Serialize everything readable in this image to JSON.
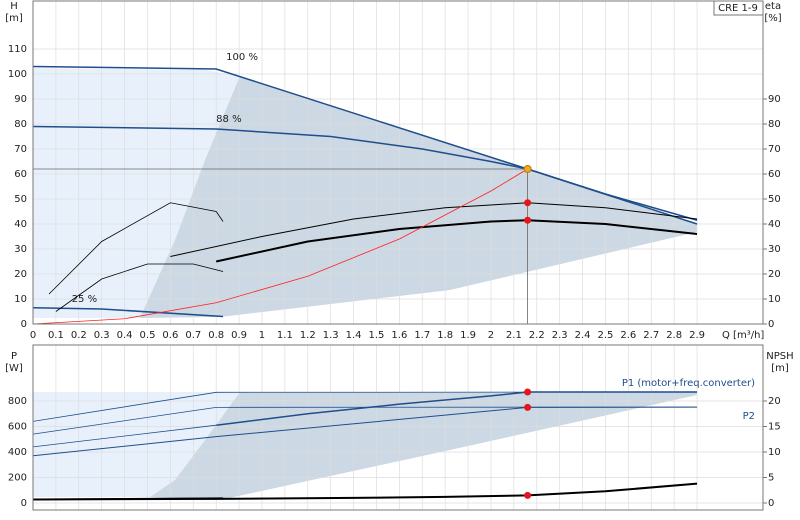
{
  "chart_data": [
    {
      "type": "line",
      "y_label": "H",
      "y_unit": "[m]",
      "y2_label": "eta",
      "y2_unit": "[%]",
      "x_label": "Q [m³/h]",
      "badge": "CRE 1-9",
      "xlim": [
        0,
        3.188
      ],
      "ylim": [
        0,
        129.2
      ],
      "y2lim": [
        0,
        129.2
      ],
      "xticks": [
        0,
        0.1,
        0.2,
        0.3,
        0.4,
        0.5,
        0.6,
        0.7,
        0.8,
        0.9,
        1,
        1.1,
        1.2,
        1.3,
        1.4,
        1.5,
        1.6,
        1.7,
        1.8,
        1.9,
        2,
        2.1,
        2.2,
        2.3,
        2.4,
        2.5,
        2.6,
        2.7,
        2.8,
        2.9
      ],
      "yticks": [
        0,
        10,
        20,
        30,
        40,
        50,
        60,
        70,
        80,
        90,
        100,
        110
      ],
      "y2ticks": [
        0,
        10,
        20,
        30,
        40,
        50,
        60,
        70,
        80,
        90
      ],
      "grid": true,
      "series": [
        {
          "name": "100 %",
          "color": "#1f4e8c",
          "line_width": 1.5,
          "x": [
            0,
            0.8,
            2.16,
            2.9
          ],
          "values": [
            103,
            102,
            62,
            40
          ]
        },
        {
          "name": "88 %",
          "color": "#1f4e8c",
          "line_width": 1.5,
          "x": [
            0,
            0.8,
            1.3,
            1.7,
            2.0,
            2.16,
            2.5,
            2.9
          ],
          "values": [
            79,
            78,
            75,
            70,
            65,
            62,
            52,
            41.5
          ]
        },
        {
          "name": "25 %",
          "color": "#1f4e8c",
          "line_width": 1.5,
          "x": [
            0,
            0.3,
            0.83
          ],
          "values": [
            6.5,
            6,
            3
          ]
        },
        {
          "color": "#000000",
          "line_width": 2,
          "axis": "y2",
          "x": [
            0.8,
            1.2,
            1.6,
            2.0,
            2.16,
            2.5,
            2.9
          ],
          "values": [
            25,
            33,
            38,
            41,
            41.5,
            40,
            36
          ]
        },
        {
          "color": "#000000",
          "line_width": 1,
          "axis": "y2",
          "x": [
            0.6,
            1.0,
            1.4,
            1.8,
            2.16,
            2.5,
            2.9
          ],
          "values": [
            27,
            35,
            42,
            46.5,
            48.5,
            46.5,
            42
          ]
        },
        {
          "color": "#000000",
          "line_width": 0.8,
          "axis": "y2",
          "x": [
            0.07,
            0.3,
            0.6,
            0.8,
            0.83
          ],
          "values": [
            12,
            33,
            48.5,
            45,
            41
          ]
        },
        {
          "color": "#000000",
          "line_width": 0.8,
          "axis": "y2",
          "x": [
            0.1,
            0.3,
            0.5,
            0.7,
            0.83
          ],
          "values": [
            5,
            18,
            24,
            24,
            21
          ]
        },
        {
          "color": "#ff2020",
          "line_width": 0.8,
          "x": [
            0,
            0.4,
            0.8,
            1.2,
            1.6,
            2.0,
            2.16
          ],
          "values": [
            0,
            2.1,
            8.5,
            19.1,
            34,
            53.2,
            62
          ]
        }
      ],
      "points": [
        {
          "x": 2.16,
          "value": 62,
          "color": "#f5a623",
          "guides": true
        },
        {
          "x": 2.16,
          "value": 48.5,
          "color": "#e8141c",
          "axis": "y2"
        },
        {
          "x": 2.16,
          "value": 41.5,
          "color": "#e8141c",
          "axis": "y2"
        }
      ]
    },
    {
      "type": "line",
      "y_label": "P",
      "y_unit": "[W]",
      "y2_label": "NPSH",
      "y2_unit": "[m]",
      "xlim": [
        0,
        3.188
      ],
      "ylim": [
        -55,
        1239
      ],
      "y2lim": [
        -1.37,
        30.98
      ],
      "xticks": [
        0,
        0.1,
        0.2,
        0.3,
        0.4,
        0.5,
        0.6,
        0.7,
        0.8,
        0.9,
        1,
        1.1,
        1.2,
        1.3,
        1.4,
        1.5,
        1.6,
        1.7,
        1.8,
        1.9,
        2,
        2.1,
        2.2,
        2.3,
        2.4,
        2.5,
        2.6,
        2.7,
        2.8,
        2.9
      ],
      "yticks": [
        0,
        200,
        400,
        600,
        800
      ],
      "y2ticks": [
        0,
        5,
        10,
        15,
        20
      ],
      "grid": true,
      "series": [
        {
          "name": "P1 (motor+freq.converter)",
          "color": "#1f4e8c",
          "line_width": 1.5,
          "x": [
            0.8,
            1.2,
            1.6,
            2.0,
            2.16,
            2.5,
            2.9
          ],
          "values": [
            610,
            700,
            775,
            840,
            870,
            870,
            870
          ]
        },
        {
          "name": "P2",
          "color": "#1f4e8c",
          "line_width": 1,
          "x": [
            0,
            0.8,
            2.16,
            2.9
          ],
          "values": [
            370,
            520,
            750,
            752
          ]
        },
        {
          "color": "#1f4e8c",
          "line_width": 0.8,
          "x": [
            0,
            0.8,
            2.9
          ],
          "values": [
            640,
            868,
            870
          ]
        },
        {
          "color": "#1f4e8c",
          "line_width": 0.8,
          "x": [
            0,
            0.8,
            2.9
          ],
          "values": [
            540,
            750,
            752
          ]
        },
        {
          "color": "#1f4e8c",
          "line_width": 0.8,
          "x": [
            0,
            0.8
          ],
          "values": [
            440,
            610
          ]
        },
        {
          "color": "#000000",
          "line_width": 1,
          "x": [
            0,
            0.83
          ],
          "values": [
            30,
            40
          ]
        },
        {
          "color": "#000000",
          "line_width": 2,
          "axis": "y2",
          "x": [
            0,
            0.8,
            1.4,
            1.8,
            2.16,
            2.5,
            2.9
          ],
          "values": [
            0.7,
            0.8,
            1.0,
            1.2,
            1.5,
            2.3,
            3.8
          ]
        }
      ],
      "points": [
        {
          "x": 2.16,
          "value": 870,
          "color": "#e8141c"
        },
        {
          "x": 2.16,
          "value": 750,
          "color": "#e8141c"
        },
        {
          "x": 2.16,
          "value": 1.5,
          "color": "#e8141c",
          "axis": "y2"
        }
      ]
    }
  ]
}
